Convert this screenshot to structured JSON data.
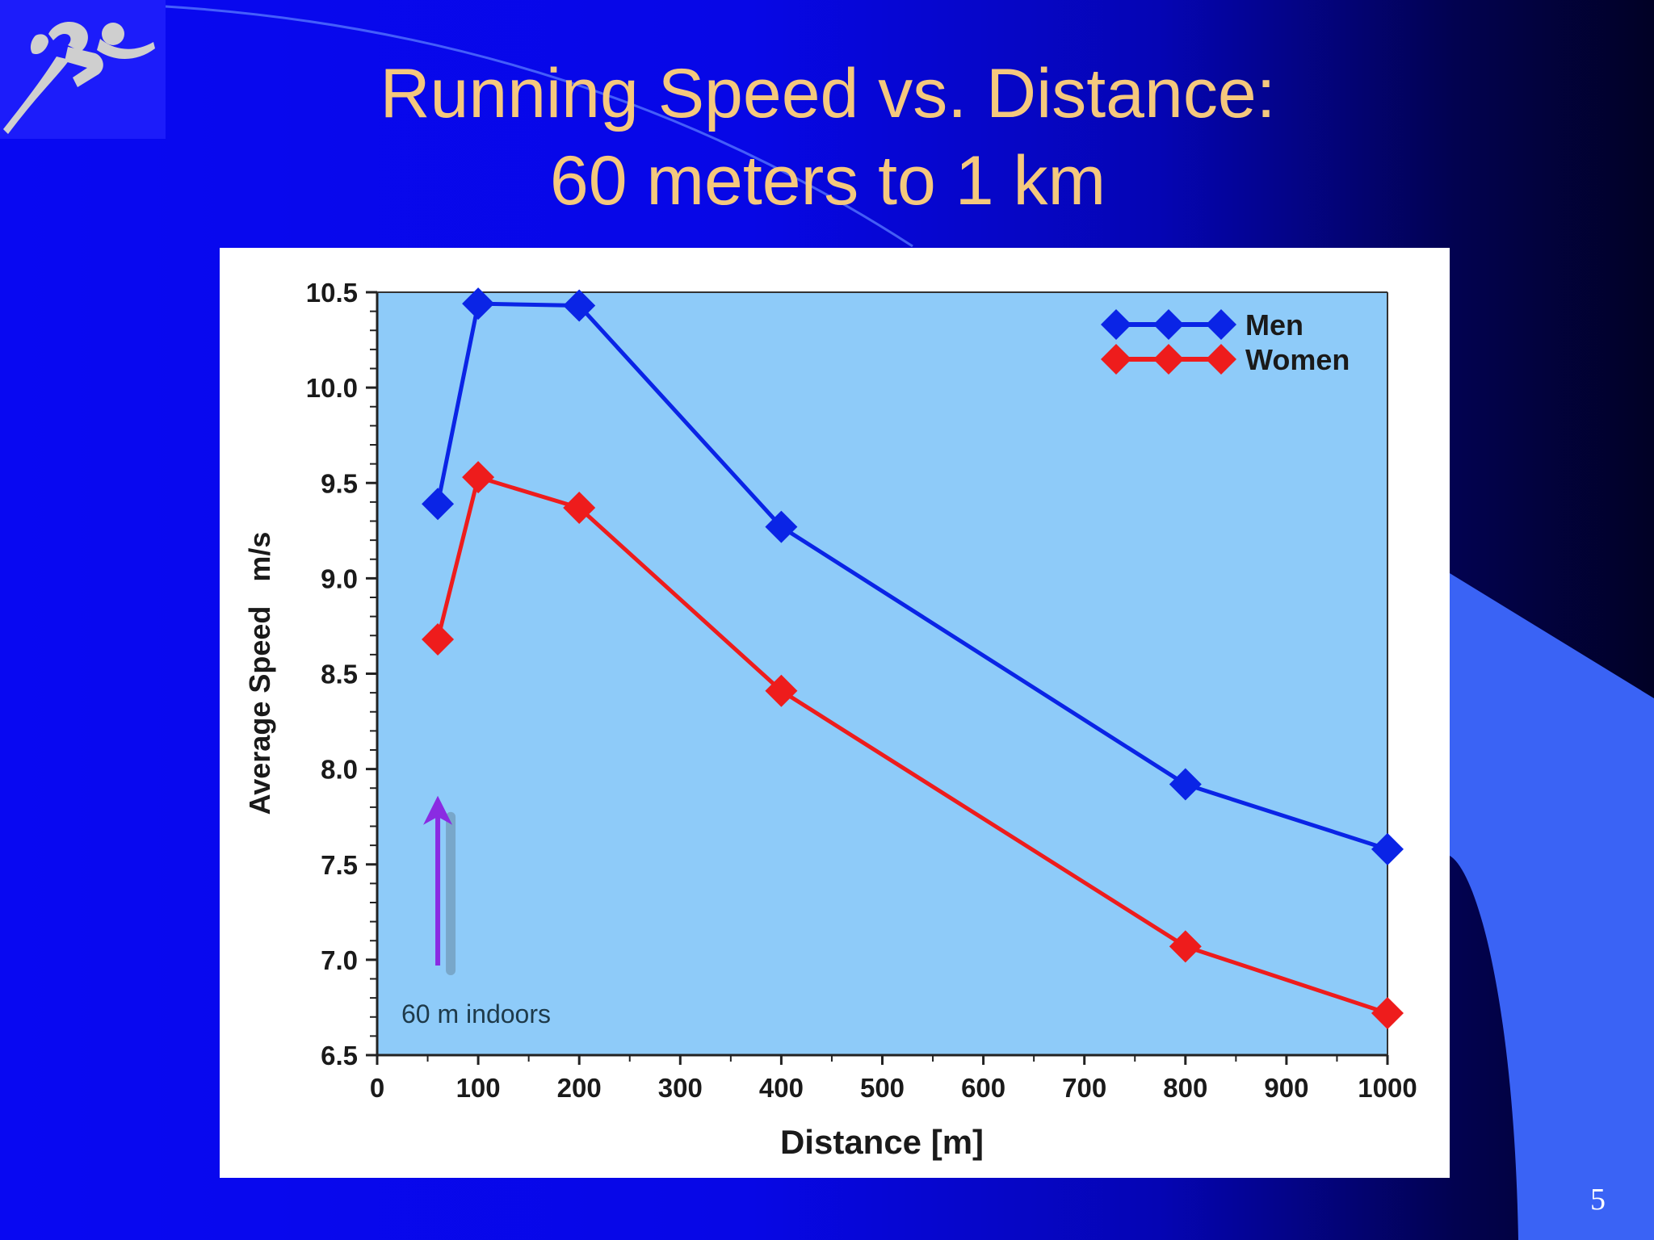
{
  "slide": {
    "title_line1": "Running Speed vs. Distance:",
    "title_line2": "60 meters to 1 km",
    "page_number": "5",
    "logo_icon": "runner-icon"
  },
  "colors": {
    "title": "#f5c87d",
    "plot_background": "#8ecbf9",
    "men": "#0a24e6",
    "women": "#ee1c1c",
    "annotation_arrow": "#8a2be2"
  },
  "chart_data": {
    "type": "line",
    "title": "",
    "xlabel": "Distance [m]",
    "ylabel": "Average Speed   m/s",
    "xlim": [
      0,
      1000
    ],
    "ylim": [
      6.5,
      10.5
    ],
    "x_ticks": [
      0,
      100,
      200,
      300,
      400,
      500,
      600,
      700,
      800,
      900,
      1000
    ],
    "x_tick_labels": [
      "0",
      "100",
      "200",
      "300",
      "400",
      "500",
      "600",
      "700",
      "800",
      "900",
      "1000"
    ],
    "y_ticks": [
      6.5,
      7.0,
      7.5,
      8.0,
      8.5,
      9.0,
      9.5,
      10.0,
      10.5
    ],
    "y_tick_labels": [
      "6.5",
      "7.0",
      "7.5",
      "8.0",
      "8.5",
      "9.0",
      "9.5",
      "10.0",
      "10.5"
    ],
    "grid": false,
    "legend_position": "top-right",
    "series": [
      {
        "name": "Men",
        "color": "#0a24e6",
        "x": [
          60,
          100,
          200,
          400,
          800,
          1000
        ],
        "y": [
          9.39,
          10.44,
          10.43,
          9.27,
          7.92,
          7.58
        ]
      },
      {
        "name": "Women",
        "color": "#ee1c1c",
        "x": [
          60,
          100,
          200,
          400,
          800,
          1000
        ],
        "y": [
          8.68,
          9.53,
          9.37,
          8.41,
          7.07,
          6.72
        ]
      }
    ],
    "annotations": [
      {
        "text": "60 m indoors",
        "points_to_x": 60,
        "arrow_from_y": 6.97,
        "arrow_to_y": 7.86
      }
    ]
  }
}
